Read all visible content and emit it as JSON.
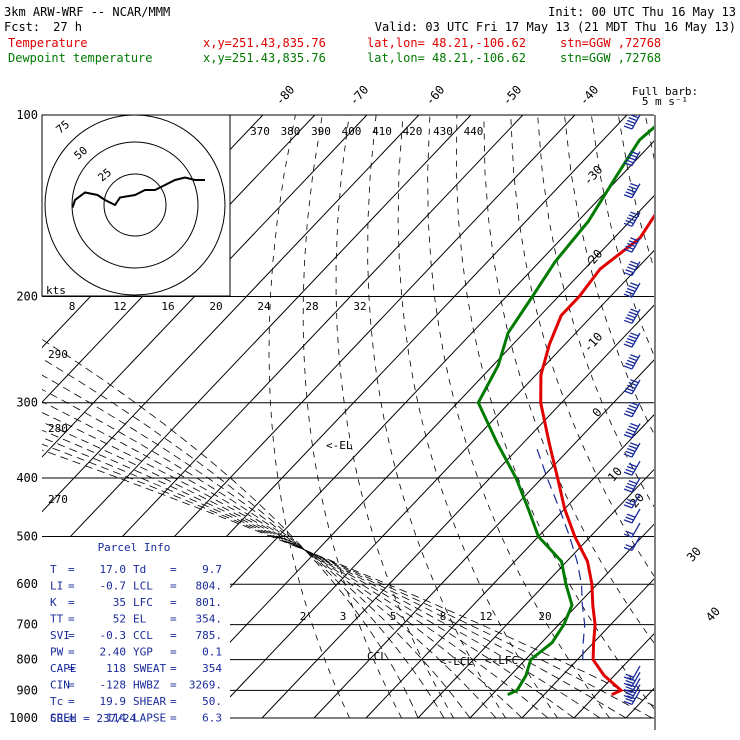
{
  "header": {
    "model": "3km ARW-WRF -- NCAR/MMM",
    "init": "Init: 00 UTC Thu 16 May 13",
    "fcst_label": "Fcst:",
    "fcst_hours": "27 h",
    "valid": "Valid: 03 UTC Fri 17 May 13 (21 MDT Thu 16 May 13)",
    "temp_label": "Temperature",
    "dew_label": "Dewpoint temperature",
    "xy": "x,y=251.43,835.76",
    "latlon": "lat,lon= 48.21,-106.62",
    "stn": "stn=GGW ,72768"
  },
  "barb_legend": {
    "line1": "Full barb:",
    "line2": "5 m s⁻¹"
  },
  "hodograph": {
    "ring_labels": [
      "75",
      "50",
      "25"
    ],
    "kts_label": "kts"
  },
  "annotations": {
    "el": "<-EL",
    "lcl": "<-LCL",
    "lfc": "<-LFC",
    "ccl": "CCL"
  },
  "parcel_info": {
    "title": "Parcel Info",
    "rows": [
      [
        "T",
        "17.0",
        "Td",
        "9.7"
      ],
      [
        "LI",
        "-0.7",
        "LCL",
        "804."
      ],
      [
        "K",
        "35",
        "LFC",
        "801."
      ],
      [
        "TT",
        "52",
        "EL",
        "354."
      ],
      [
        "SVI",
        "-0.3",
        "CCL",
        "785."
      ],
      [
        "PW",
        "2.40",
        "YGP",
        "0.1"
      ],
      [
        "CAPE",
        "118",
        "SWEAT",
        "354"
      ],
      [
        "CIN",
        "-128",
        "HWBZ",
        "3269."
      ],
      [
        "Tc",
        "19.9",
        "SHEAR",
        "50."
      ],
      [
        "SREH",
        "114",
        "LAPSE",
        "6.3"
      ]
    ],
    "cell": "CELL = 237/24"
  },
  "colors": {
    "temperature": "#e00000",
    "dewpoint": "#007a00",
    "parcel": "#1a2a9a",
    "barb": "#1a2a9a"
  },
  "chart_data": {
    "type": "line",
    "title": "",
    "ylabel": "",
    "yscale": "log-pressure",
    "pressure_levels": [
      100,
      200,
      300,
      400,
      500,
      600,
      700,
      800,
      900,
      1000
    ],
    "pressure_labels": [
      "100",
      "200",
      "300",
      "400",
      "500",
      "600",
      "700",
      "800",
      "900",
      "1000"
    ],
    "isotherm_labels_top": [
      "-80",
      "-70",
      "-60",
      "-50",
      "-40"
    ],
    "isotherm_labels_side": [
      "-30",
      "-20",
      "-10",
      "0",
      "10",
      "20",
      "30",
      "40"
    ],
    "theta_labels": [
      "370",
      "380",
      "390",
      "400",
      "410",
      "420",
      "430",
      "440"
    ],
    "mixing_ratio_labels": [
      "8",
      "12",
      "16",
      "20",
      "24",
      "28",
      "32"
    ],
    "mixing_ratio_labels_low": [
      "2",
      "3",
      "5",
      "8",
      "12",
      "20"
    ],
    "left_labels": [
      "290",
      "280",
      "270"
    ],
    "series": [
      {
        "name": "Temperature",
        "color": "#e00000",
        "points": [
          [
            100,
            -65
          ],
          [
            110,
            -62
          ],
          [
            125,
            -59
          ],
          [
            140,
            -57
          ],
          [
            160,
            -55
          ],
          [
            180,
            -57
          ],
          [
            200,
            -56
          ],
          [
            215,
            -56
          ],
          [
            240,
            -53
          ],
          [
            270,
            -49
          ],
          [
            300,
            -44
          ],
          [
            350,
            -35
          ],
          [
            400,
            -27
          ],
          [
            450,
            -20
          ],
          [
            500,
            -13
          ],
          [
            550,
            -6
          ],
          [
            600,
            -1
          ],
          [
            650,
            3
          ],
          [
            700,
            7
          ],
          [
            750,
            10
          ],
          [
            800,
            13
          ],
          [
            850,
            18
          ],
          [
            900,
            24
          ],
          [
            915,
            23
          ]
        ]
      },
      {
        "name": "Dewpoint temperature",
        "color": "#007a00",
        "points": [
          [
            100,
            -72
          ],
          [
            110,
            -73
          ],
          [
            125,
            -71
          ],
          [
            150,
            -68
          ],
          [
            175,
            -67
          ],
          [
            200,
            -65
          ],
          [
            230,
            -63
          ],
          [
            260,
            -59
          ],
          [
            300,
            -56
          ],
          [
            350,
            -45
          ],
          [
            400,
            -35
          ],
          [
            450,
            -27
          ],
          [
            500,
            -20
          ],
          [
            550,
            -11
          ],
          [
            600,
            -6
          ],
          [
            650,
            -1
          ],
          [
            700,
            1
          ],
          [
            750,
            2
          ],
          [
            800,
            1
          ],
          [
            850,
            3
          ],
          [
            900,
            4
          ],
          [
            915,
            3
          ]
        ]
      },
      {
        "name": "parcel",
        "color": "#1a2a9a",
        "points": [
          [
            800,
            11
          ],
          [
            750,
            8
          ],
          [
            700,
            5
          ],
          [
            650,
            1
          ],
          [
            600,
            -3
          ],
          [
            550,
            -8
          ],
          [
            500,
            -14
          ],
          [
            450,
            -21
          ],
          [
            400,
            -29
          ],
          [
            354,
            -37
          ]
        ]
      }
    ],
    "hodograph_points": [
      [
        -25,
        -1
      ],
      [
        -24,
        2
      ],
      [
        -20,
        5
      ],
      [
        -15,
        4
      ],
      [
        -12,
        2
      ],
      [
        -8,
        0
      ],
      [
        -6,
        3
      ],
      [
        0,
        4
      ],
      [
        4,
        6
      ],
      [
        8,
        6
      ],
      [
        12,
        8
      ],
      [
        16,
        10
      ],
      [
        20,
        11
      ],
      [
        24,
        10
      ],
      [
        28,
        10
      ]
    ],
    "wind_barbs": [
      [
        100,
        25
      ],
      [
        115,
        25
      ],
      [
        130,
        25
      ],
      [
        145,
        25
      ],
      [
        160,
        25
      ],
      [
        175,
        25
      ],
      [
        190,
        25
      ],
      [
        210,
        25
      ],
      [
        230,
        25
      ],
      [
        250,
        25
      ],
      [
        275,
        25
      ],
      [
        300,
        25
      ],
      [
        325,
        25
      ],
      [
        350,
        25
      ],
      [
        375,
        20
      ],
      [
        400,
        20
      ],
      [
        425,
        15
      ],
      [
        450,
        15
      ],
      [
        475,
        10
      ],
      [
        500,
        10
      ],
      [
        820,
        10
      ],
      [
        840,
        15
      ],
      [
        860,
        15
      ],
      [
        880,
        15
      ],
      [
        900,
        15
      ]
    ]
  }
}
